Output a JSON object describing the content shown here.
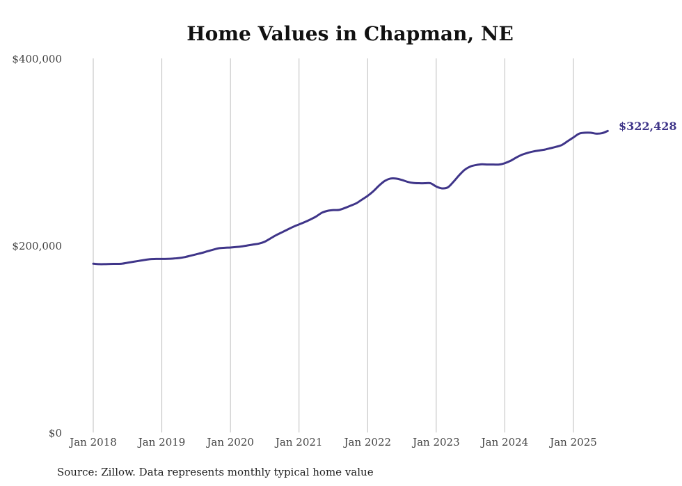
{
  "chart_data": {
    "type": "line",
    "title": "Home Values in Chapman, NE",
    "source": "Source: Zillow. Data represents monthly typical home value",
    "ylim": [
      0,
      400000
    ],
    "y_ticks": [
      {
        "value": 0,
        "label": "$0"
      },
      {
        "value": 200000,
        "label": "$200,000"
      },
      {
        "value": 400000,
        "label": "$400,000"
      }
    ],
    "x_ticks": [
      {
        "date": "2018-01",
        "label": "Jan 2018"
      },
      {
        "date": "2019-01",
        "label": "Jan 2019"
      },
      {
        "date": "2020-01",
        "label": "Jan 2020"
      },
      {
        "date": "2021-01",
        "label": "Jan 2021"
      },
      {
        "date": "2022-01",
        "label": "Jan 2022"
      },
      {
        "date": "2023-01",
        "label": "Jan 2023"
      },
      {
        "date": "2024-01",
        "label": "Jan 2024"
      },
      {
        "date": "2025-01",
        "label": "Jan 2025"
      }
    ],
    "grid": "vertical",
    "line_color": "#3f3589",
    "end_label": "$322,428",
    "series": [
      {
        "points": [
          [
            "2018-01",
            180500
          ],
          [
            "2018-02",
            180000
          ],
          [
            "2018-03",
            180000
          ],
          [
            "2018-04",
            180200
          ],
          [
            "2018-05",
            180300
          ],
          [
            "2018-06",
            180500
          ],
          [
            "2018-07",
            181500
          ],
          [
            "2018-08",
            182500
          ],
          [
            "2018-09",
            183500
          ],
          [
            "2018-10",
            184500
          ],
          [
            "2018-11",
            185300
          ],
          [
            "2018-12",
            185600
          ],
          [
            "2019-01",
            185600
          ],
          [
            "2019-02",
            185700
          ],
          [
            "2019-03",
            186000
          ],
          [
            "2019-04",
            186500
          ],
          [
            "2019-05",
            187500
          ],
          [
            "2019-06",
            189000
          ],
          [
            "2019-07",
            190500
          ],
          [
            "2019-08",
            192000
          ],
          [
            "2019-09",
            193800
          ],
          [
            "2019-10",
            195500
          ],
          [
            "2019-11",
            197000
          ],
          [
            "2019-12",
            197500
          ],
          [
            "2020-01",
            197800
          ],
          [
            "2020-02",
            198300
          ],
          [
            "2020-03",
            199000
          ],
          [
            "2020-04",
            200000
          ],
          [
            "2020-05",
            201000
          ],
          [
            "2020-06",
            202000
          ],
          [
            "2020-07",
            204000
          ],
          [
            "2020-08",
            207500
          ],
          [
            "2020-09",
            211000
          ],
          [
            "2020-10",
            214000
          ],
          [
            "2020-11",
            217000
          ],
          [
            "2020-12",
            220000
          ],
          [
            "2021-01",
            222500
          ],
          [
            "2021-02",
            225000
          ],
          [
            "2021-03",
            227800
          ],
          [
            "2021-04",
            231000
          ],
          [
            "2021-05",
            235000
          ],
          [
            "2021-06",
            237000
          ],
          [
            "2021-07",
            237800
          ],
          [
            "2021-08",
            238000
          ],
          [
            "2021-09",
            240000
          ],
          [
            "2021-10",
            242500
          ],
          [
            "2021-11",
            245000
          ],
          [
            "2021-12",
            249000
          ],
          [
            "2022-01",
            253000
          ],
          [
            "2022-02",
            258000
          ],
          [
            "2022-03",
            264000
          ],
          [
            "2022-04",
            269000
          ],
          [
            "2022-05",
            271500
          ],
          [
            "2022-06",
            271500
          ],
          [
            "2022-07",
            270000
          ],
          [
            "2022-08",
            268000
          ],
          [
            "2022-09",
            266800
          ],
          [
            "2022-10",
            266500
          ],
          [
            "2022-11",
            266500
          ],
          [
            "2022-12",
            266500
          ],
          [
            "2023-01",
            263000
          ],
          [
            "2023-02",
            261000
          ],
          [
            "2023-03",
            262000
          ],
          [
            "2023-04",
            268000
          ],
          [
            "2023-05",
            275000
          ],
          [
            "2023-06",
            281000
          ],
          [
            "2023-07",
            284500
          ],
          [
            "2023-08",
            286000
          ],
          [
            "2023-09",
            286800
          ],
          [
            "2023-10",
            286500
          ],
          [
            "2023-11",
            286500
          ],
          [
            "2023-12",
            286500
          ],
          [
            "2024-01",
            288000
          ],
          [
            "2024-02",
            290500
          ],
          [
            "2024-03",
            294000
          ],
          [
            "2024-04",
            297000
          ],
          [
            "2024-05",
            299000
          ],
          [
            "2024-06",
            300500
          ],
          [
            "2024-07",
            301500
          ],
          [
            "2024-08",
            302500
          ],
          [
            "2024-09",
            304000
          ],
          [
            "2024-10",
            305500
          ],
          [
            "2024-11",
            307500
          ],
          [
            "2024-12",
            311500
          ],
          [
            "2025-01",
            315500
          ],
          [
            "2025-02",
            319500
          ],
          [
            "2025-03",
            320500
          ],
          [
            "2025-04",
            320500
          ],
          [
            "2025-05",
            319500
          ],
          [
            "2025-06",
            320000
          ],
          [
            "2025-07",
            322428
          ]
        ]
      }
    ]
  }
}
